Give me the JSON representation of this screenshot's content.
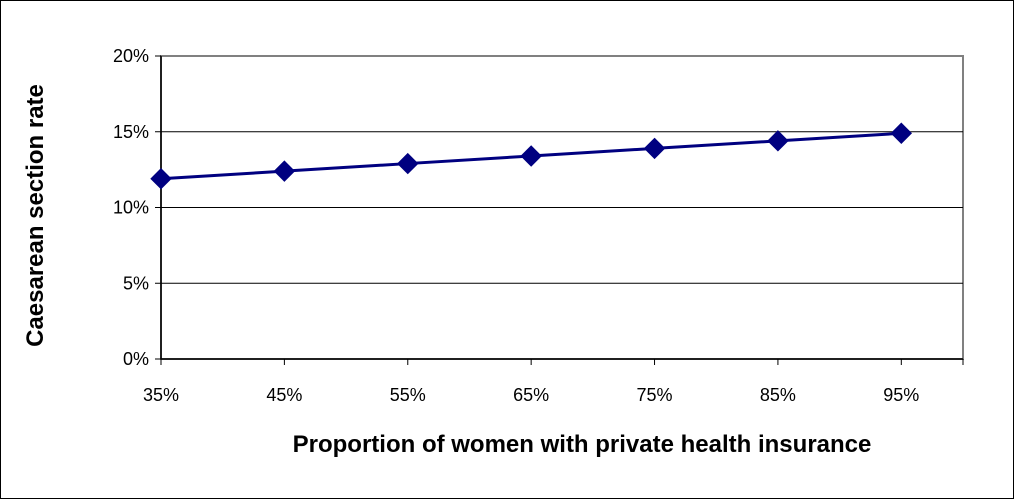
{
  "chart_data": {
    "type": "line",
    "xlabel": "Proportion of women with private health insurance",
    "ylabel": "Caesarean section rate",
    "x_ticks": [
      "35%",
      "45%",
      "55%",
      "65%",
      "75%",
      "85%",
      "95%"
    ],
    "y_ticks": [
      "0%",
      "5%",
      "10%",
      "15%",
      "20%"
    ],
    "xlim": [
      0.35,
      1.0
    ],
    "ylim": [
      0,
      0.2
    ],
    "grid": {
      "horizontal": true,
      "vertical": false
    },
    "legend": "none",
    "series": [
      {
        "color": "#000080",
        "marker": "diamond",
        "x": [
          0.35,
          0.45,
          0.55,
          0.65,
          0.75,
          0.85,
          0.95
        ],
        "y": [
          0.119,
          0.124,
          0.129,
          0.134,
          0.139,
          0.144,
          0.149
        ]
      }
    ]
  }
}
